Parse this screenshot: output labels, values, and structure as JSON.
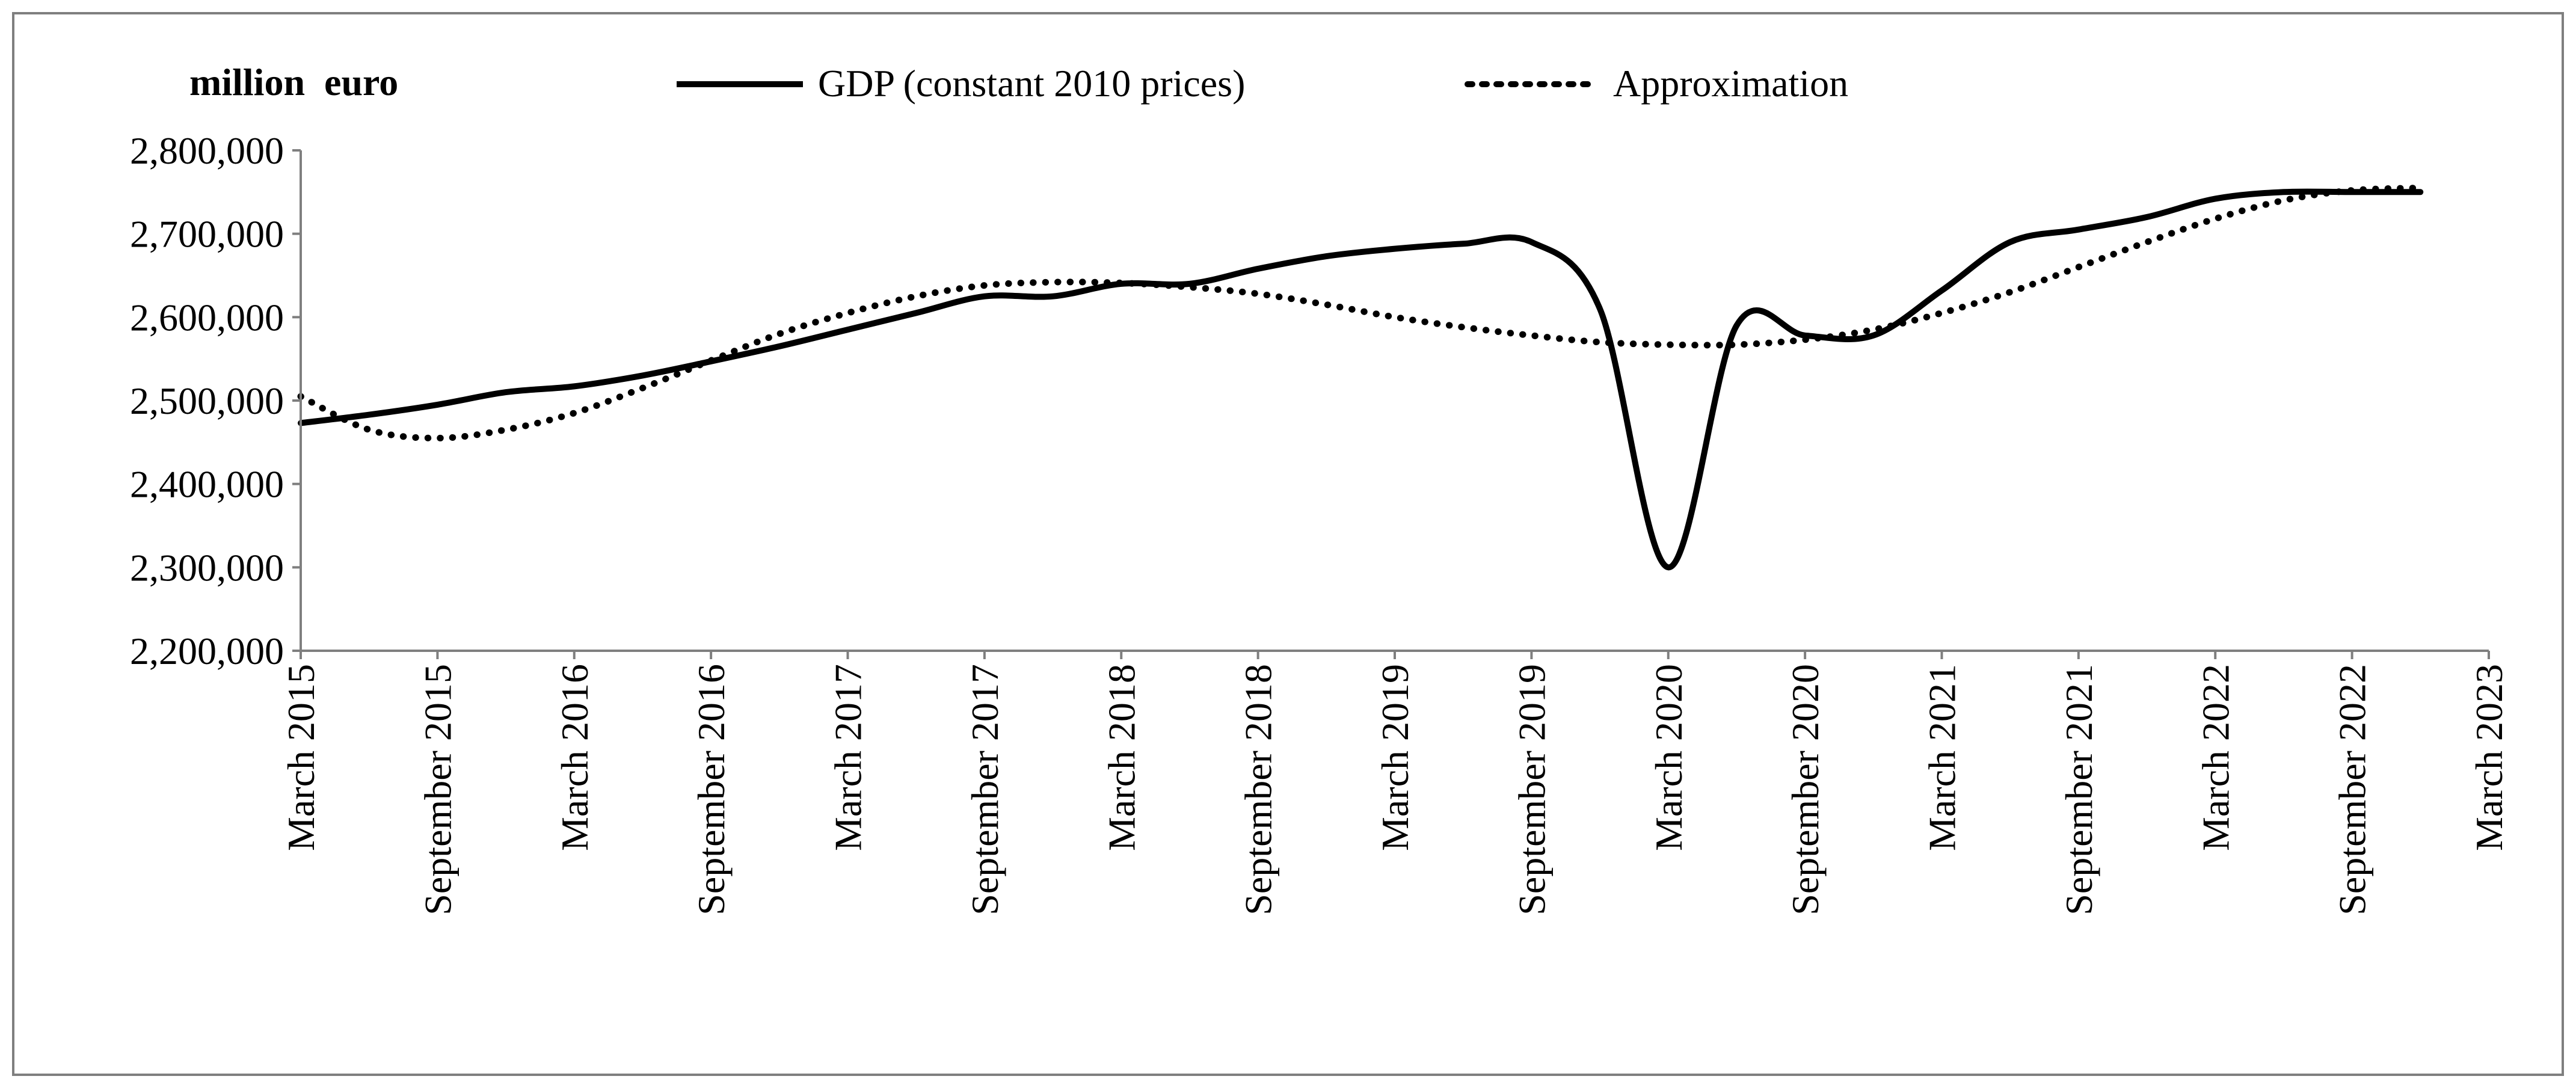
{
  "chart_data": {
    "type": "line",
    "title": "",
    "y_unit_label": "million  euro",
    "xlabel": "",
    "ylabel": "million euro",
    "ylim": [
      2200000,
      2800000
    ],
    "y_ticks": [
      2200000,
      2300000,
      2400000,
      2500000,
      2600000,
      2700000,
      2800000
    ],
    "y_tick_labels": [
      "2,200,000",
      "2,300,000",
      "2,400,000",
      "2,500,000",
      "2,600,000",
      "2,700,000",
      "2,800,000"
    ],
    "x_tick_labels": [
      "March 2015",
      "September 2015",
      "March 2016",
      "September 2016",
      "March 2017",
      "September 2017",
      "March 2018",
      "September 2018",
      "March 2019",
      "September 2019",
      "March 2020",
      "September 2020",
      "March 2021",
      "September 2021",
      "March 2022",
      "September 2022",
      "March 2023"
    ],
    "x_tick_positions": [
      0,
      2,
      4,
      6,
      8,
      10,
      12,
      14,
      16,
      18,
      20,
      22,
      24,
      26,
      28,
      30,
      32
    ],
    "xlim": [
      0,
      32
    ],
    "grid": false,
    "legend_position": "top",
    "series": [
      {
        "name": "GDP (constant 2010 prices)",
        "style": "solid",
        "x": [
          0,
          1,
          2,
          3,
          4,
          5,
          6,
          7,
          8,
          9,
          10,
          11,
          12,
          13,
          14,
          15,
          16,
          17,
          18,
          19,
          20,
          21,
          22,
          23,
          24,
          25,
          26,
          27,
          28,
          29,
          30,
          31
        ],
        "values": [
          2473000,
          2483000,
          2495000,
          2510000,
          2517000,
          2530000,
          2547000,
          2565000,
          2585000,
          2605000,
          2625000,
          2625000,
          2640000,
          2640000,
          2658000,
          2673000,
          2682000,
          2688000,
          2690000,
          2610000,
          2300000,
          2590000,
          2578000,
          2578000,
          2632000,
          2690000,
          2705000,
          2720000,
          2742000,
          2750000,
          2750000,
          2750000
        ]
      },
      {
        "name": "Approximation",
        "style": "dotted",
        "x": [
          0,
          1,
          2,
          3,
          4,
          5,
          6,
          7,
          8,
          9,
          10,
          11,
          12,
          13,
          14,
          15,
          16,
          17,
          18,
          19,
          20,
          21,
          22,
          23,
          24,
          25,
          26,
          27,
          28,
          29,
          30,
          31
        ],
        "values": [
          2505000,
          2465000,
          2455000,
          2465000,
          2485000,
          2515000,
          2548000,
          2580000,
          2605000,
          2625000,
          2638000,
          2642000,
          2641000,
          2636000,
          2628000,
          2615000,
          2600000,
          2588000,
          2578000,
          2570000,
          2567000,
          2567000,
          2573000,
          2585000,
          2605000,
          2630000,
          2660000,
          2690000,
          2718000,
          2740000,
          2752000,
          2755000
        ]
      }
    ]
  },
  "colors": {
    "line": "#000000",
    "axis": "#7f7f7f",
    "frame": "#7f7f7f",
    "background": "#ffffff"
  }
}
